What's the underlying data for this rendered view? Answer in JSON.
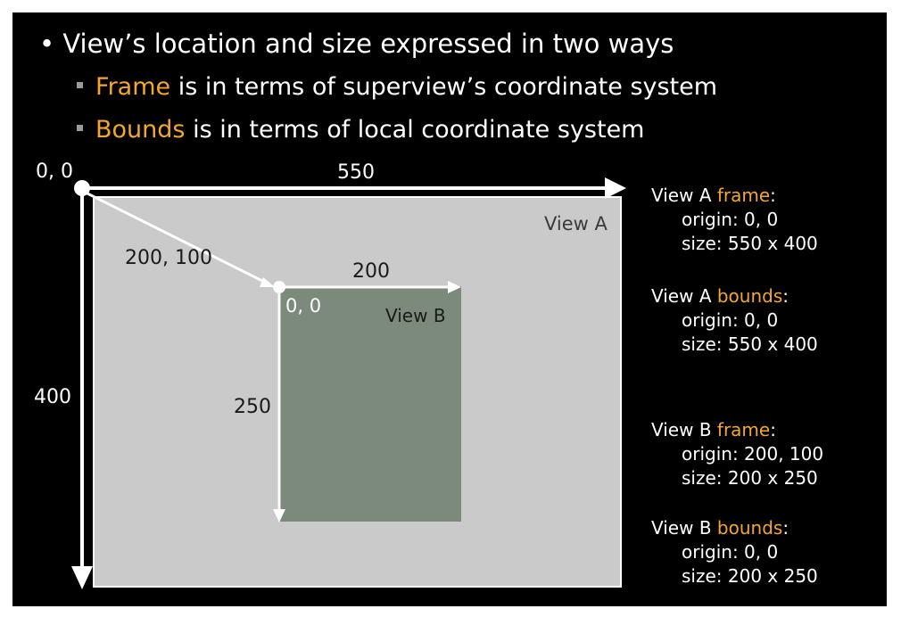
{
  "slide": {
    "bullet_main": "View’s location and size expressed in two ways",
    "bullet_frame_keyword": "Frame",
    "bullet_frame_rest": " is in terms of superview’s coordinate system",
    "bullet_bounds_keyword": "Bounds",
    "bullet_bounds_rest": " is in terms of local coordinate system"
  },
  "diagram": {
    "origin_label": "0, 0",
    "width_label": "550",
    "height_label": "400",
    "view_a_label": "View A",
    "offset_label": "200, 100",
    "view_b_width_label": "200",
    "view_b_height_label": "250",
    "view_b_origin_label": "0, 0",
    "view_b_label": "View B"
  },
  "info": {
    "view_a_frame": {
      "prefix": "View A ",
      "keyword": "frame",
      "suffix": ":",
      "origin": "origin: 0, 0",
      "size": "size:  550 x 400"
    },
    "view_a_bounds": {
      "prefix": "View A ",
      "keyword": "bounds",
      "suffix": ":",
      "origin": "origin: 0, 0",
      "size": "size:  550 x 400"
    },
    "view_b_frame": {
      "prefix": "View B ",
      "keyword": "frame",
      "suffix": ":",
      "origin": "origin: 200, 100",
      "size": "size:  200 x 250"
    },
    "view_b_bounds": {
      "prefix": "View B ",
      "keyword": "bounds",
      "suffix": ":",
      "origin": "origin: 0, 0",
      "size": "size:  200 x 250"
    }
  },
  "colors": {
    "background": "#000000",
    "view_a_fill": "#cacaca",
    "view_b_fill": "#7c8a7b",
    "accent": "#f3a72e",
    "arrow": "#ffffff"
  }
}
